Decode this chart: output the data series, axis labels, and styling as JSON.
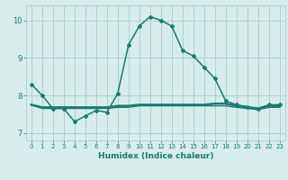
{
  "xlabel": "Humidex (Indice chaleur)",
  "background_color": "#d6edec",
  "grid_color": "#b0d0ce",
  "line_color": "#1a7a6e",
  "xlim": [
    -0.5,
    23.5
  ],
  "ylim": [
    6.8,
    10.4
  ],
  "yticks": [
    7,
    8,
    9,
    10
  ],
  "xticks": [
    0,
    1,
    2,
    3,
    4,
    5,
    6,
    7,
    8,
    9,
    10,
    11,
    12,
    13,
    14,
    15,
    16,
    17,
    18,
    19,
    20,
    21,
    22,
    23
  ],
  "line1_x": [
    0,
    1,
    2,
    3,
    4,
    5,
    6,
    7,
    8,
    9,
    10,
    11,
    12,
    13,
    14,
    15,
    16,
    17,
    18,
    19,
    20,
    21,
    22,
    23
  ],
  "line1_y": [
    8.3,
    8.0,
    7.65,
    7.65,
    7.3,
    7.45,
    7.6,
    7.55,
    8.05,
    9.35,
    9.85,
    10.1,
    10.0,
    9.85,
    9.2,
    9.05,
    8.75,
    8.45,
    7.85,
    7.75,
    7.7,
    7.65,
    7.75,
    7.75
  ],
  "line2_x": [
    0,
    1,
    2,
    3,
    4,
    5,
    6,
    7,
    8,
    9,
    10,
    11,
    12,
    13,
    14,
    15,
    16,
    17,
    18,
    19,
    20,
    21,
    22,
    23
  ],
  "line2_y": [
    7.75,
    7.68,
    7.68,
    7.68,
    7.68,
    7.68,
    7.68,
    7.68,
    7.72,
    7.72,
    7.75,
    7.75,
    7.75,
    7.75,
    7.75,
    7.75,
    7.75,
    7.78,
    7.78,
    7.72,
    7.68,
    7.65,
    7.72,
    7.72
  ],
  "line3_x": [
    0,
    1,
    2,
    3,
    4,
    5,
    6,
    7,
    8,
    9,
    10,
    11,
    12,
    13,
    14,
    15,
    16,
    17,
    18,
    19,
    20,
    21,
    22,
    23
  ],
  "line3_y": [
    7.75,
    7.65,
    7.65,
    7.65,
    7.65,
    7.65,
    7.65,
    7.65,
    7.68,
    7.68,
    7.72,
    7.72,
    7.72,
    7.72,
    7.72,
    7.72,
    7.72,
    7.72,
    7.72,
    7.68,
    7.65,
    7.62,
    7.68,
    7.68
  ]
}
